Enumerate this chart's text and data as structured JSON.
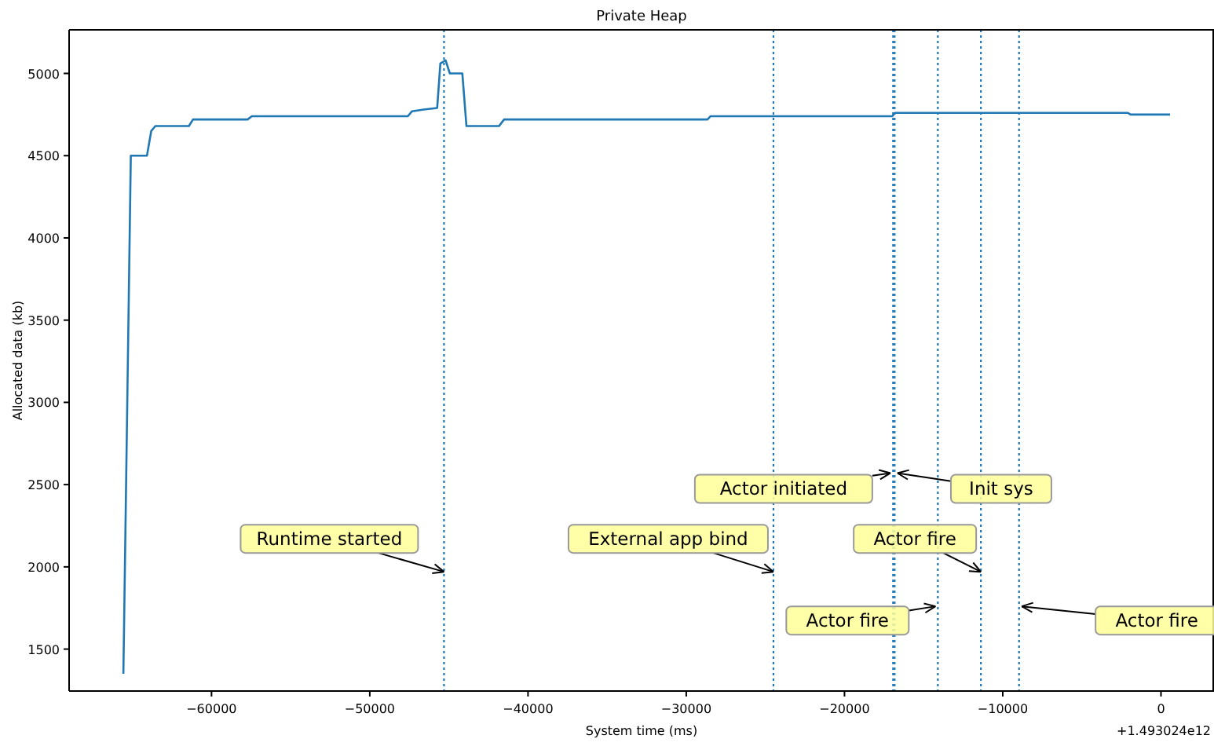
{
  "chart_data": {
    "type": "line",
    "title": "Private Heap",
    "xlabel": "System time (ms)",
    "ylabel": "Allocated data (kb)",
    "series": [
      {
        "color": "#1f77b4",
        "x": [
          -65570,
          -65100,
          -64080,
          -63810,
          -63550,
          -61430,
          -61170,
          -57720,
          -57450,
          -47590,
          -47330,
          -46600,
          -45740,
          -45540,
          -45210,
          -44940,
          -44150,
          -43890,
          -41830,
          -41510,
          -31710,
          -28660,
          -28460,
          -16980,
          -16810,
          -2090,
          -1920,
          570
        ],
        "values": [
          1350,
          4500,
          4500,
          4650,
          4680,
          4680,
          4720,
          4720,
          4740,
          4740,
          4770,
          4780,
          4790,
          5060,
          5080,
          5000,
          5000,
          4680,
          4680,
          4720,
          4720,
          4720,
          4740,
          4740,
          4760,
          4760,
          4750,
          4750
        ]
      }
    ],
    "xlim": [
      -69000,
      3350
    ],
    "ylim": [
      1245,
      5265
    ],
    "xticks": [
      {
        "value": -60000,
        "label": "−60000"
      },
      {
        "value": -50000,
        "label": "−50000"
      },
      {
        "value": -40000,
        "label": "−40000"
      },
      {
        "value": -30000,
        "label": "−30000"
      },
      {
        "value": -20000,
        "label": "−20000"
      },
      {
        "value": -10000,
        "label": "−10000"
      },
      0
    ],
    "yticks": [
      1500,
      2000,
      2500,
      3000,
      3500,
      4000,
      4500,
      5000
    ],
    "line_style": "solid",
    "marker": "none",
    "grid": false,
    "ref_lines": [
      {
        "axis": "x",
        "value": -45310,
        "color": "#1f77b4",
        "line_style": "dotted"
      },
      {
        "axis": "x",
        "value": -24490,
        "color": "#1f77b4",
        "line_style": "dotted"
      },
      {
        "axis": "x",
        "value": -16930,
        "color": "#1f77b4",
        "line_style": "dotted"
      },
      {
        "axis": "x",
        "value": -16830,
        "color": "#1f77b4",
        "line_style": "dotted"
      },
      {
        "axis": "x",
        "value": -14100,
        "color": "#1f77b4",
        "line_style": "dotted"
      },
      {
        "axis": "x",
        "value": -11380,
        "color": "#1f77b4",
        "line_style": "dotted"
      },
      {
        "axis": "x",
        "value": -8970,
        "color": "#1f77b4",
        "line_style": "dotted"
      }
    ],
    "annotations": [
      {
        "text": "Runtime started",
        "x": -45310,
        "y": 1970
      },
      {
        "text": "External app bind",
        "x": -24490,
        "y": 1970
      },
      {
        "text": "Actor initiated",
        "x": -17100,
        "y": 2570
      },
      {
        "text": "Init sys",
        "x": -16650,
        "y": 2570
      },
      {
        "text": "Actor fire",
        "x": -11380,
        "y": 1970
      },
      {
        "text": "Actor fire",
        "x": -14250,
        "y": 1760
      },
      {
        "text": "Actor fire",
        "x": -8800,
        "y": 1760
      },
      "+1.493024e12"
    ]
  }
}
